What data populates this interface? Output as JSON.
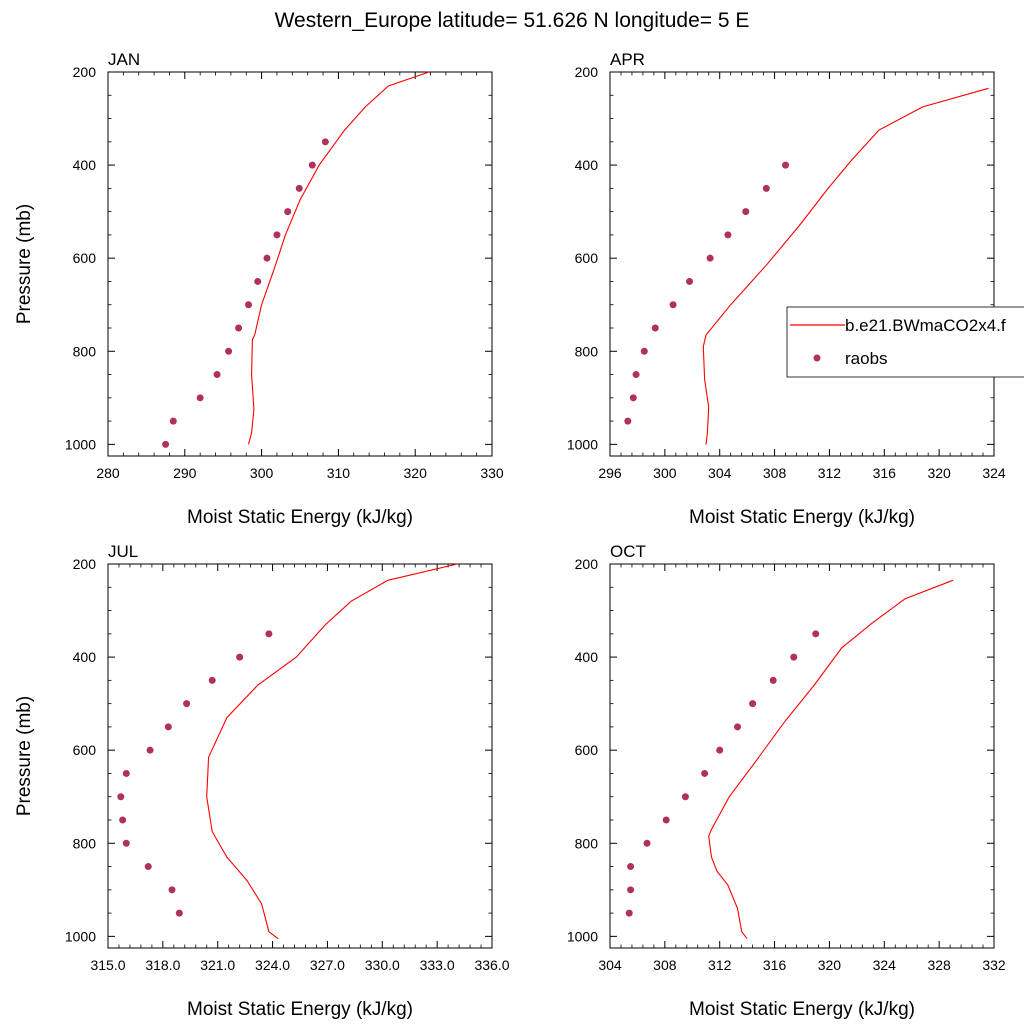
{
  "figure": {
    "title": "Western_Europe  latitude= 51.626 N longitude= 5 E"
  },
  "legend": {
    "entries": [
      {
        "label": "b.e21.BWmaCO2x4.f",
        "kind": "line",
        "color": "#ff0000"
      },
      {
        "label": "raobs",
        "kind": "marker",
        "color": "#b03060"
      }
    ]
  },
  "chart_data": [
    {
      "type": "line",
      "panel": "JAN",
      "xlabel": "Moist Static Energy (kJ/kg)",
      "ylabel": "Pressure (mb)",
      "xlim": [
        280,
        330
      ],
      "ylim": [
        200,
        1025
      ],
      "y_reversed": true,
      "xticks": [
        "280",
        "290",
        "300",
        "310",
        "320",
        "330"
      ],
      "xtick_values": [
        280,
        290,
        300,
        310,
        320,
        330
      ],
      "yticks": [
        "200",
        "400",
        "600",
        "800",
        "1000"
      ],
      "ytick_values": [
        200,
        400,
        600,
        800,
        1000
      ],
      "series": [
        {
          "name": "b.e21.BWmaCO2x4.f",
          "style": "line",
          "color": "#ff0000",
          "x": [
            298.3,
            298.7,
            299.0,
            298.7,
            298.8,
            299.1,
            300.0,
            301.6,
            303.1,
            305.0,
            307.5,
            310.8,
            313.5,
            316.5,
            321.8
          ],
          "y": [
            1000,
            975,
            925,
            850,
            775,
            765,
            700,
            625,
            550,
            475,
            400,
            325,
            275,
            230,
            200
          ]
        },
        {
          "name": "raobs",
          "style": "scatter",
          "color": "#b03060",
          "x": [
            287.5,
            288.5,
            292.0,
            294.2,
            295.7,
            297.0,
            298.3,
            299.5,
            300.7,
            302.0,
            303.4,
            304.9,
            306.6,
            308.3
          ],
          "y": [
            1000,
            950,
            900,
            850,
            800,
            750,
            700,
            650,
            600,
            550,
            500,
            450,
            400,
            350
          ]
        }
      ]
    },
    {
      "type": "line",
      "panel": "APR",
      "xlabel": "Moist Static Energy (kJ/kg)",
      "ylabel": "",
      "xlim": [
        296,
        324
      ],
      "ylim": [
        200,
        1025
      ],
      "y_reversed": true,
      "xticks": [
        "296",
        "300",
        "304",
        "308",
        "312",
        "316",
        "320",
        "324"
      ],
      "xtick_values": [
        296,
        300,
        304,
        308,
        312,
        316,
        320,
        324
      ],
      "yticks": [
        "200",
        "400",
        "600",
        "800",
        "1000"
      ],
      "ytick_values": [
        200,
        400,
        600,
        800,
        1000
      ],
      "series": [
        {
          "name": "b.e21.BWmaCO2x4.f",
          "style": "line",
          "color": "#ff0000",
          "x": [
            303.0,
            303.1,
            303.2,
            302.9,
            302.8,
            303.0,
            304.8,
            307.4,
            309.8,
            311.9,
            313.6,
            315.6,
            318.8,
            323.6
          ],
          "y": [
            1000,
            975,
            920,
            860,
            790,
            765,
            700,
            615,
            530,
            450,
            390,
            325,
            275,
            235
          ]
        },
        {
          "name": "raobs",
          "style": "scatter",
          "color": "#b03060",
          "x": [
            297.3,
            297.7,
            297.9,
            298.5,
            299.3,
            300.6,
            301.8,
            303.3,
            304.6,
            305.9,
            307.4,
            308.8
          ],
          "y": [
            950,
            900,
            850,
            800,
            750,
            700,
            650,
            600,
            550,
            500,
            450,
            400
          ]
        }
      ]
    },
    {
      "type": "line",
      "panel": "JUL",
      "xlabel": "Moist Static Energy (kJ/kg)",
      "ylabel": "Pressure (mb)",
      "xlim": [
        315,
        336
      ],
      "ylim": [
        200,
        1025
      ],
      "y_reversed": true,
      "xticks": [
        "315.0",
        "318.0",
        "321.0",
        "324.0",
        "327.0",
        "330.0",
        "333.0",
        "336.0"
      ],
      "xtick_values": [
        315,
        318,
        321,
        324,
        327,
        330,
        333,
        336
      ],
      "yticks": [
        "200",
        "400",
        "600",
        "800",
        "1000"
      ],
      "ytick_values": [
        200,
        400,
        600,
        800,
        1000
      ],
      "series": [
        {
          "name": "b.e21.BWmaCO2x4.f",
          "style": "line",
          "color": "#ff0000",
          "x": [
            324.3,
            323.8,
            323.4,
            322.6,
            321.5,
            320.7,
            320.4,
            320.5,
            321.5,
            323.2,
            325.3,
            326.9,
            328.3,
            330.3,
            334.1
          ],
          "y": [
            1005,
            990,
            930,
            880,
            830,
            775,
            700,
            615,
            530,
            460,
            400,
            330,
            280,
            235,
            200
          ]
        },
        {
          "name": "raobs",
          "style": "scatter",
          "color": "#b03060",
          "x": [
            318.9,
            318.5,
            317.2,
            316.0,
            315.8,
            315.7,
            316.0,
            317.3,
            318.3,
            319.3,
            320.7,
            322.2,
            323.8
          ],
          "y": [
            950,
            900,
            850,
            800,
            750,
            700,
            650,
            600,
            550,
            500,
            450,
            400,
            350
          ]
        }
      ]
    },
    {
      "type": "line",
      "panel": "OCT",
      "xlabel": "Moist Static Energy (kJ/kg)",
      "ylabel": "",
      "xlim": [
        304,
        332
      ],
      "ylim": [
        200,
        1025
      ],
      "y_reversed": true,
      "xticks": [
        "304",
        "308",
        "312",
        "316",
        "320",
        "324",
        "328",
        "332"
      ],
      "xtick_values": [
        304,
        308,
        312,
        316,
        320,
        324,
        328,
        332
      ],
      "yticks": [
        "200",
        "400",
        "600",
        "800",
        "1000"
      ],
      "ytick_values": [
        200,
        400,
        600,
        800,
        1000
      ],
      "series": [
        {
          "name": "b.e21.BWmaCO2x4.f",
          "style": "line",
          "color": "#ff0000",
          "x": [
            314.0,
            313.6,
            313.3,
            312.6,
            311.8,
            311.4,
            311.2,
            311.4,
            312.7,
            314.6,
            316.7,
            318.9,
            320.9,
            323.2,
            325.5,
            329.0
          ],
          "y": [
            1005,
            990,
            940,
            890,
            860,
            830,
            785,
            770,
            700,
            625,
            540,
            460,
            380,
            325,
            275,
            235
          ]
        },
        {
          "name": "raobs",
          "style": "scatter",
          "color": "#b03060",
          "x": [
            305.4,
            305.5,
            305.5,
            306.7,
            308.1,
            309.5,
            310.9,
            312.0,
            313.3,
            314.4,
            315.9,
            317.4,
            319.0
          ],
          "y": [
            950,
            900,
            850,
            800,
            750,
            700,
            650,
            600,
            550,
            500,
            450,
            400,
            350
          ]
        }
      ]
    }
  ]
}
